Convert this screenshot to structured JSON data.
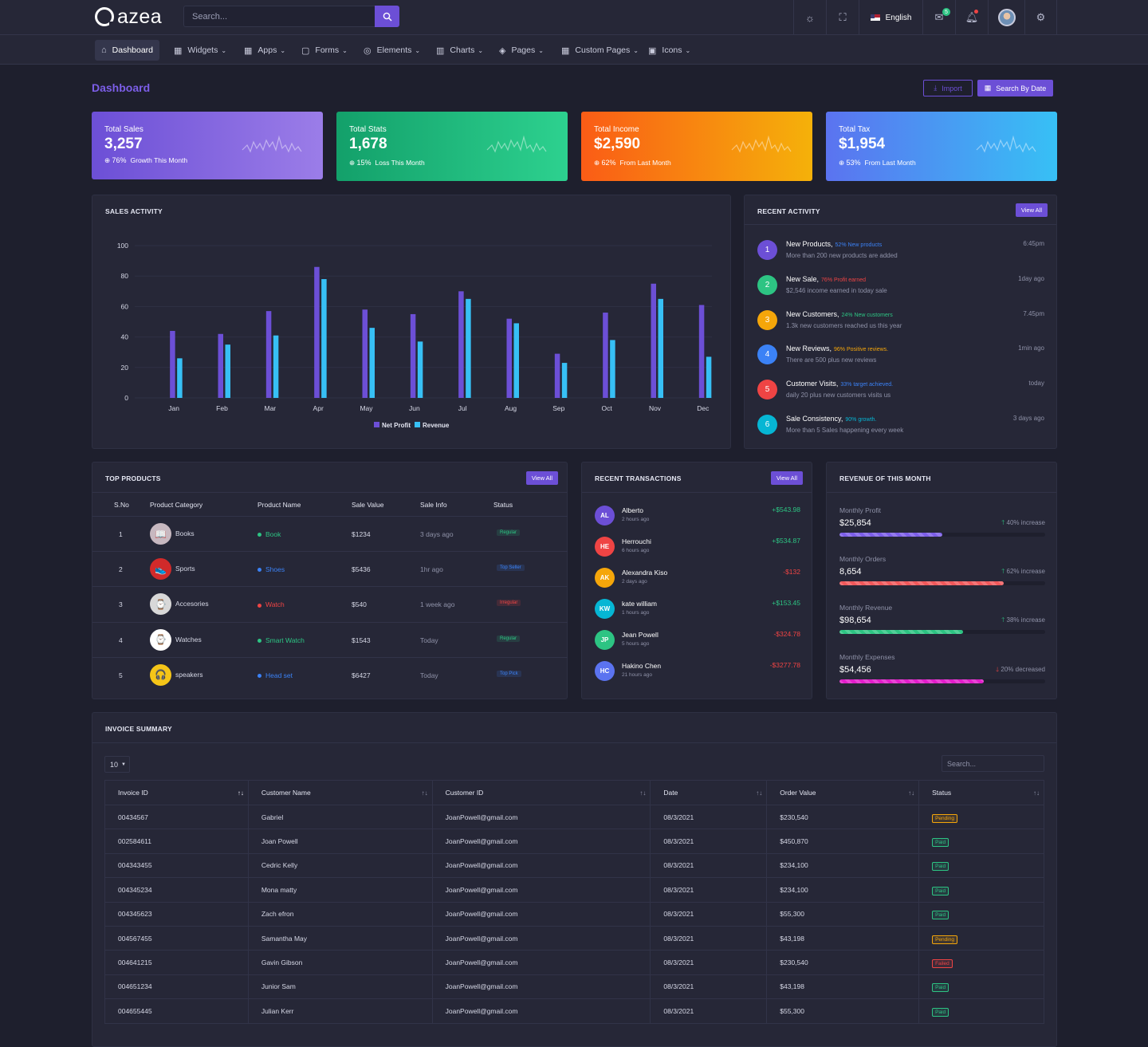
{
  "app": {
    "name": "azea",
    "search_placeholder": "Search...",
    "language": "English",
    "mail_count": "5"
  },
  "nav": [
    {
      "label": "Dashboard",
      "icon": "⌂",
      "caret": false
    },
    {
      "label": "Widgets",
      "icon": "▦",
      "caret": true
    },
    {
      "label": "Apps",
      "icon": "▦",
      "caret": true
    },
    {
      "label": "Forms",
      "icon": "▢",
      "caret": true
    },
    {
      "label": "Elements",
      "icon": "◎",
      "caret": true
    },
    {
      "label": "Charts",
      "icon": "▥",
      "caret": true
    },
    {
      "label": "Pages",
      "icon": "◈",
      "caret": true
    },
    {
      "label": "Custom Pages",
      "icon": "▦",
      "caret": true
    },
    {
      "label": "Icons",
      "icon": "▣",
      "caret": true
    }
  ],
  "page": {
    "title": "Dashboard",
    "import_label": "Import",
    "search_date_label": "Search By Date"
  },
  "stats": [
    {
      "label": "Total Sales",
      "value": "3,257",
      "pct": "76%",
      "note": "Growth This Month",
      "from": "#6c4fd6",
      "to": "#9b7de8"
    },
    {
      "label": "Total Stats",
      "value": "1,678",
      "pct": "15%",
      "note": "Loss This Month",
      "from": "#13a06a",
      "to": "#2dd18f"
    },
    {
      "label": "Total Income",
      "value": "$2,590",
      "pct": "62%",
      "note": "From Last Month",
      "from": "#fa5c16",
      "to": "#f5b10a"
    },
    {
      "label": "Total Tax",
      "value": "$1,954",
      "pct": "53%",
      "note": "From Last Month",
      "from": "#5b73f0",
      "to": "#37c0f5"
    }
  ],
  "sales_activity": {
    "title": "SALES ACTIVITY"
  },
  "chart_data": {
    "type": "bar",
    "categories": [
      "Jan",
      "Feb",
      "Mar",
      "Apr",
      "May",
      "Jun",
      "Jul",
      "Aug",
      "Sep",
      "Oct",
      "Nov",
      "Dec"
    ],
    "series": [
      {
        "name": "Net Profit",
        "color": "#6c4fd6",
        "values": [
          44,
          42,
          57,
          86,
          58,
          55,
          70,
          52,
          29,
          56,
          75,
          61
        ]
      },
      {
        "name": "Revenue",
        "color": "#37c0f5",
        "values": [
          26,
          35,
          41,
          78,
          46,
          37,
          65,
          49,
          23,
          38,
          65,
          27
        ]
      }
    ],
    "ylim": [
      0,
      100
    ],
    "yticks": [
      "100",
      "80",
      "60",
      "40",
      "20",
      "0"
    ],
    "grid": true,
    "legend": "bottom"
  },
  "recent_activity": {
    "title": "RECENT ACTIVITY",
    "view_all": "View All",
    "items": [
      {
        "num": "1",
        "color": "#6c4fd6",
        "title": "New Products,",
        "tag": "52% New products",
        "tag_color": "#3b82f6",
        "desc": "More than 200 new products are added",
        "time": "6:45pm"
      },
      {
        "num": "2",
        "color": "#2dc483",
        "title": "New Sale,",
        "tag": "76% Profit earned",
        "tag_color": "#ef4444",
        "desc": "$2,546 income earned in today sale",
        "time": "1day ago"
      },
      {
        "num": "3",
        "color": "#f5a60a",
        "title": "New Customers,",
        "tag": "24% New customers",
        "tag_color": "#2dc483",
        "desc": "1.3k new customers reached us this year",
        "time": "7.45pm"
      },
      {
        "num": "4",
        "color": "#3b82f6",
        "title": "New Reviews,",
        "tag": "96% Positive reviews.",
        "tag_color": "#f5a60a",
        "desc": "There are 500 plus new reviews",
        "time": "1min ago"
      },
      {
        "num": "5",
        "color": "#ef4444",
        "title": "Customer Visits,",
        "tag": "33% target achieved.",
        "tag_color": "#3b82f6",
        "desc": "daily 20 plus new customers visits us",
        "time": "today"
      },
      {
        "num": "6",
        "color": "#06b6d4",
        "title": "Sale Consistency,",
        "tag": "90% growth.",
        "tag_color": "#06b6d4",
        "desc": "More than 5 Sales happening every week",
        "time": "3 days ago"
      }
    ]
  },
  "top_products": {
    "title": "TOP PRODUCTS",
    "view_all": "View All",
    "headers": [
      "S.No",
      "Product Category",
      "Product Name",
      "Sale Value",
      "Sale Info",
      "Status"
    ],
    "rows": [
      {
        "sno": "1",
        "category": "Books",
        "icon": "📖",
        "icon_bg": "#c7b8c0",
        "name": "Book",
        "dot": "#2dc483",
        "name_color": "#2dc483",
        "value": "$1234",
        "info": "3 days ago",
        "status": "Regular",
        "status_color": "#2dc483"
      },
      {
        "sno": "2",
        "category": "Sports",
        "icon": "👟",
        "icon_bg": "#d12a2a",
        "name": "Shoes",
        "dot": "#3b82f6",
        "name_color": "#3b82f6",
        "value": "$5436",
        "info": "1hr ago",
        "status": "Top Seller",
        "status_color": "#3b82f6"
      },
      {
        "sno": "3",
        "category": "Accesories",
        "icon": "⌚",
        "icon_bg": "#d8d8d8",
        "name": "Watch",
        "dot": "#ef4444",
        "name_color": "#ef4444",
        "value": "$540",
        "info": "1 week ago",
        "status": "Irregular",
        "status_color": "#ef4444"
      },
      {
        "sno": "4",
        "category": "Watches",
        "icon": "⌚",
        "icon_bg": "#ffffff",
        "name": "Smart Watch",
        "dot": "#2dc483",
        "name_color": "#2dc483",
        "value": "$1543",
        "info": "Today",
        "status": "Regular",
        "status_color": "#2dc483"
      },
      {
        "sno": "5",
        "category": "speakers",
        "icon": "🎧",
        "icon_bg": "#f5c518",
        "name": "Head set",
        "dot": "#3b82f6",
        "name_color": "#3b82f6",
        "value": "$6427",
        "info": "Today",
        "status": "Top Pick",
        "status_color": "#3b82f6"
      }
    ]
  },
  "transactions": {
    "title": "RECENT TRANSACTIONS",
    "view_all": "View All",
    "items": [
      {
        "initials": "AL",
        "color": "#6c4fd6",
        "name": "Alberto",
        "time": "2 hours ago",
        "amount": "+$543.98",
        "positive": true
      },
      {
        "initials": "HE",
        "color": "#ef4444",
        "name": "Herrouchi",
        "time": "6 hours ago",
        "amount": "+$534.87",
        "positive": true
      },
      {
        "initials": "AK",
        "color": "#f5a60a",
        "name": "Alexandra Kiso",
        "time": "2 days ago",
        "amount": "-$132",
        "positive": false
      },
      {
        "initials": "KW",
        "color": "#06b6d4",
        "name": "kate william",
        "time": "1 hours ago",
        "amount": "+$153.45",
        "positive": true
      },
      {
        "initials": "JP",
        "color": "#2dc483",
        "name": "Jean Powell",
        "time": "5 hours ago",
        "amount": "-$324.78",
        "positive": false
      },
      {
        "initials": "HC",
        "color": "#5b73f0",
        "name": "Hakino Chen",
        "time": "21 hours ago",
        "amount": "-$3277.78",
        "positive": false
      }
    ]
  },
  "revenue": {
    "title": "REVENUE OF THIS MONTH",
    "items": [
      {
        "label": "Monthly Profit",
        "value": "$25,854",
        "change": "40% increase",
        "up": true,
        "progress": 0.5,
        "color": "#7c5ee8"
      },
      {
        "label": "Monthly Orders",
        "value": "8,654",
        "change": "62% increase",
        "up": true,
        "progress": 0.8,
        "color": "#f0585a"
      },
      {
        "label": "Monthly Revenue",
        "value": "$98,654",
        "change": "38% increase",
        "up": true,
        "progress": 0.6,
        "color": "#2dc483"
      },
      {
        "label": "Monthly Expenses",
        "value": "$54,456",
        "change": "20% decreased",
        "up": false,
        "progress": 0.7,
        "color": "#e11dca"
      }
    ]
  },
  "invoice": {
    "title": "INVOICE SUMMARY",
    "page_length": "10",
    "search_placeholder": "Search...",
    "headers": [
      "Invoice ID",
      "Customer Name",
      "Customer ID",
      "Date",
      "Order Value",
      "Status"
    ],
    "rows": [
      [
        "00434567",
        "Gabriel",
        "JoanPowell@gmail.com",
        "08/3/2021",
        "$230,540",
        "Pending"
      ],
      [
        "002584611",
        "Joan Powell",
        "JoanPowell@gmail.com",
        "08/3/2021",
        "$450,870",
        "Paid"
      ],
      [
        "004343455",
        "Cedric Kelly",
        "JoanPowell@gmail.com",
        "08/3/2021",
        "$234,100",
        "Paid"
      ],
      [
        "004345234",
        "Mona matty",
        "JoanPowell@gmail.com",
        "08/3/2021",
        "$234,100",
        "Paid"
      ],
      [
        "004345623",
        "Zach efron",
        "JoanPowell@gmail.com",
        "08/3/2021",
        "$55,300",
        "Paid"
      ],
      [
        "004567455",
        "Samantha May",
        "JoanPowell@gmail.com",
        "08/3/2021",
        "$43,198",
        "Pending"
      ],
      [
        "004641215",
        "Gavin Gibson",
        "JoanPowell@gmail.com",
        "08/3/2021",
        "$230,540",
        "Failed"
      ],
      [
        "004651234",
        "Junior Sam",
        "JoanPowell@gmail.com",
        "08/3/2021",
        "$43,198",
        "Paid"
      ],
      [
        "004655445",
        "Julian Kerr",
        "JoanPowell@gmail.com",
        "08/3/2021",
        "$55,300",
        "Paid"
      ]
    ],
    "status_colors": {
      "Pending": "#f5a60a",
      "Paid": "#2dc483",
      "Failed": "#ef4444"
    }
  }
}
